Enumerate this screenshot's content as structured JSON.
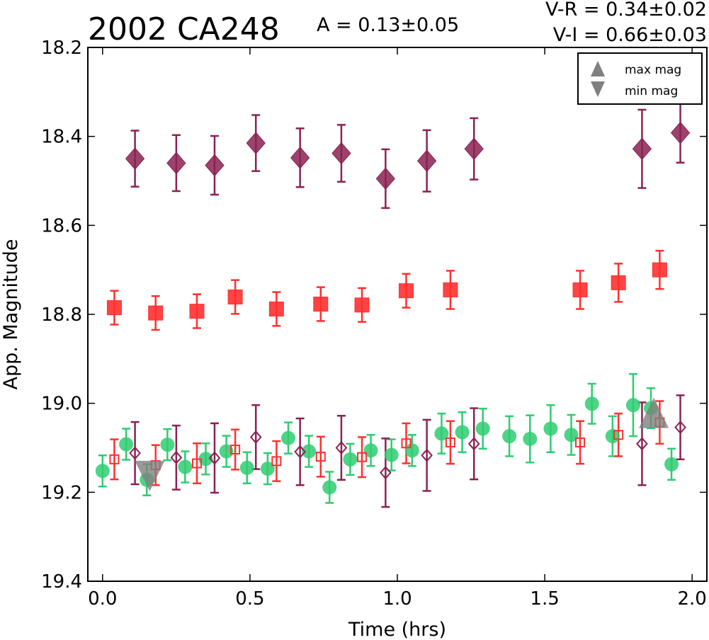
{
  "chart_data": {
    "type": "scatter",
    "title": "2002 CA248",
    "amplitude_text": "A  = 0.13±0.05",
    "color_index_vr": "V-R = 0.34±0.02",
    "color_index_vi": "V-I  = 0.66±0.03",
    "xlabel": "Time (hrs)",
    "ylabel": "App. Magnitude",
    "xlim": [
      -0.05,
      2.05
    ],
    "ylim": [
      19.4,
      18.2
    ],
    "y_inverted": true,
    "xticks": [
      "0.0",
      "0.5",
      "1.0",
      "1.5",
      "2.0"
    ],
    "yticks": [
      "18.2",
      "18.4",
      "18.6",
      "18.8",
      "19.0",
      "19.2",
      "19.4"
    ],
    "legend": {
      "placement": "top-right",
      "entries": [
        {
          "label": "max mag",
          "marker": "triangle-up",
          "color": "#808080"
        },
        {
          "label": "min mag",
          "marker": "triangle-down",
          "color": "#808080"
        }
      ]
    },
    "series": [
      {
        "marker": "diamond",
        "filled": true,
        "color": "#8b2252",
        "points": [
          {
            "x": 0.11,
            "y": 18.45,
            "err": 0.063
          },
          {
            "x": 0.25,
            "y": 18.46,
            "err": 0.063
          },
          {
            "x": 0.38,
            "y": 18.465,
            "err": 0.066
          },
          {
            "x": 0.52,
            "y": 18.415,
            "err": 0.063
          },
          {
            "x": 0.67,
            "y": 18.448,
            "err": 0.066
          },
          {
            "x": 0.81,
            "y": 18.438,
            "err": 0.064
          },
          {
            "x": 0.96,
            "y": 18.495,
            "err": 0.066
          },
          {
            "x": 1.1,
            "y": 18.455,
            "err": 0.069
          },
          {
            "x": 1.26,
            "y": 18.428,
            "err": 0.069
          },
          {
            "x": 1.83,
            "y": 18.428,
            "err": 0.088
          },
          {
            "x": 1.96,
            "y": 18.392,
            "err": 0.067
          }
        ]
      },
      {
        "marker": "square",
        "filled": true,
        "color": "#ff3030",
        "points": [
          {
            "x": 0.04,
            "y": 18.785,
            "err": 0.038
          },
          {
            "x": 0.18,
            "y": 18.797,
            "err": 0.038
          },
          {
            "x": 0.32,
            "y": 18.793,
            "err": 0.038
          },
          {
            "x": 0.45,
            "y": 18.761,
            "err": 0.038
          },
          {
            "x": 0.59,
            "y": 18.788,
            "err": 0.038
          },
          {
            "x": 0.74,
            "y": 18.777,
            "err": 0.038
          },
          {
            "x": 0.88,
            "y": 18.779,
            "err": 0.038
          },
          {
            "x": 1.03,
            "y": 18.747,
            "err": 0.038
          },
          {
            "x": 1.18,
            "y": 18.745,
            "err": 0.043
          },
          {
            "x": 1.62,
            "y": 18.745,
            "err": 0.043
          },
          {
            "x": 1.75,
            "y": 18.729,
            "err": 0.043
          },
          {
            "x": 1.89,
            "y": 18.7,
            "err": 0.043
          }
        ]
      },
      {
        "marker": "circle",
        "filled": true,
        "color": "#2ecc71",
        "points": [
          {
            "x": 0.0,
            "y": 19.152,
            "err": 0.035
          },
          {
            "x": 0.08,
            "y": 19.092,
            "err": 0.035
          },
          {
            "x": 0.15,
            "y": 19.172,
            "err": 0.035
          },
          {
            "x": 0.22,
            "y": 19.093,
            "err": 0.035
          },
          {
            "x": 0.28,
            "y": 19.143,
            "err": 0.035
          },
          {
            "x": 0.35,
            "y": 19.125,
            "err": 0.035
          },
          {
            "x": 0.42,
            "y": 19.108,
            "err": 0.035
          },
          {
            "x": 0.49,
            "y": 19.145,
            "err": 0.035
          },
          {
            "x": 0.56,
            "y": 19.147,
            "err": 0.035
          },
          {
            "x": 0.63,
            "y": 19.078,
            "err": 0.035
          },
          {
            "x": 0.7,
            "y": 19.108,
            "err": 0.035
          },
          {
            "x": 0.77,
            "y": 19.189,
            "err": 0.035
          },
          {
            "x": 0.84,
            "y": 19.126,
            "err": 0.035
          },
          {
            "x": 0.91,
            "y": 19.106,
            "err": 0.035
          },
          {
            "x": 0.98,
            "y": 19.116,
            "err": 0.035
          },
          {
            "x": 1.05,
            "y": 19.106,
            "err": 0.035
          },
          {
            "x": 1.15,
            "y": 19.068,
            "err": 0.045
          },
          {
            "x": 1.22,
            "y": 19.065,
            "err": 0.045
          },
          {
            "x": 1.29,
            "y": 19.057,
            "err": 0.045
          },
          {
            "x": 1.38,
            "y": 19.074,
            "err": 0.045
          },
          {
            "x": 1.45,
            "y": 19.08,
            "err": 0.053
          },
          {
            "x": 1.52,
            "y": 19.057,
            "err": 0.053
          },
          {
            "x": 1.59,
            "y": 19.071,
            "err": 0.045
          },
          {
            "x": 1.66,
            "y": 19.001,
            "err": 0.045
          },
          {
            "x": 1.73,
            "y": 19.074,
            "err": 0.045
          },
          {
            "x": 1.8,
            "y": 19.004,
            "err": 0.07
          },
          {
            "x": 1.86,
            "y": 19.011,
            "err": 0.045
          },
          {
            "x": 1.93,
            "y": 19.137,
            "err": 0.035
          }
        ]
      },
      {
        "marker": "diamond",
        "filled": false,
        "color": "#8b2252",
        "points": [
          {
            "x": 0.11,
            "y": 19.112,
            "err": 0.07
          },
          {
            "x": 0.25,
            "y": 19.122,
            "err": 0.072
          },
          {
            "x": 0.38,
            "y": 19.123,
            "err": 0.078
          },
          {
            "x": 0.52,
            "y": 19.076,
            "err": 0.072
          },
          {
            "x": 0.67,
            "y": 19.109,
            "err": 0.075
          },
          {
            "x": 0.81,
            "y": 19.1,
            "err": 0.072
          },
          {
            "x": 0.96,
            "y": 19.156,
            "err": 0.077
          },
          {
            "x": 1.1,
            "y": 19.117,
            "err": 0.08
          },
          {
            "x": 1.26,
            "y": 19.091,
            "err": 0.08
          },
          {
            "x": 1.83,
            "y": 19.091,
            "err": 0.093
          },
          {
            "x": 1.96,
            "y": 19.054,
            "err": 0.072
          }
        ]
      },
      {
        "marker": "square",
        "filled": false,
        "color": "#ff3030",
        "points": [
          {
            "x": 0.04,
            "y": 19.126,
            "err": 0.045
          },
          {
            "x": 0.18,
            "y": 19.139,
            "err": 0.045
          },
          {
            "x": 0.32,
            "y": 19.135,
            "err": 0.045
          },
          {
            "x": 0.45,
            "y": 19.104,
            "err": 0.045
          },
          {
            "x": 0.59,
            "y": 19.13,
            "err": 0.045
          },
          {
            "x": 0.74,
            "y": 19.12,
            "err": 0.045
          },
          {
            "x": 0.88,
            "y": 19.121,
            "err": 0.045
          },
          {
            "x": 1.03,
            "y": 19.09,
            "err": 0.045
          },
          {
            "x": 1.18,
            "y": 19.088,
            "err": 0.048
          },
          {
            "x": 1.62,
            "y": 19.088,
            "err": 0.048
          },
          {
            "x": 1.75,
            "y": 19.071,
            "err": 0.048
          },
          {
            "x": 1.89,
            "y": 19.043,
            "err": 0.048
          }
        ]
      }
    ],
    "extrema_markers": [
      {
        "label": "min mag",
        "x": 0.16,
        "y": 19.15,
        "marker": "triangle-down",
        "color": "#808080"
      },
      {
        "label": "max mag",
        "x": 1.87,
        "y": 19.035,
        "marker": "triangle-up",
        "color": "#808080"
      }
    ]
  }
}
